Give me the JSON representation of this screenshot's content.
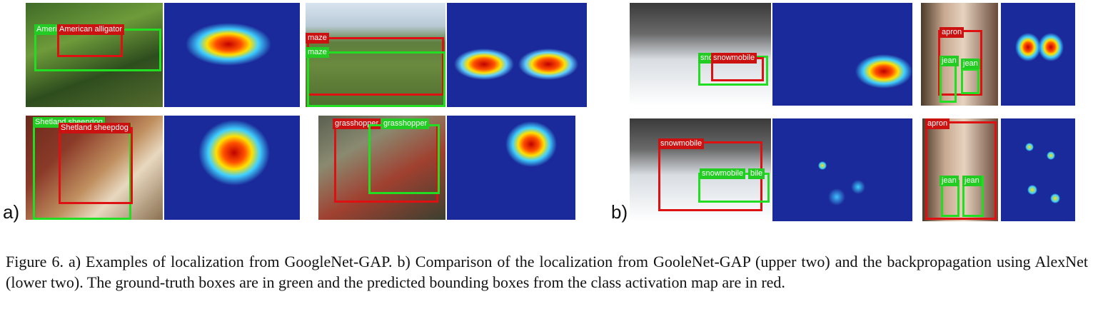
{
  "panel_a_marker": "a)",
  "panel_b_marker": "b)",
  "labels": {
    "a1_gt": "Ameri",
    "a1_pr": "American alligator",
    "a2_pr": "maze",
    "a2_gt": "maze",
    "a3_gt": "Shetland sheepdog",
    "a3_pr": "Shetland sheepdog",
    "a4_pr": "grasshopper",
    "a4_gt": "grasshopper",
    "b1_gt": "sno",
    "b1_pr": "snowmobile",
    "b2_pr": "apron",
    "b2_gt1": "jean",
    "b2_gt2": "jean",
    "b3_pr": "snowmobile",
    "b3_gt": "snowmobile",
    "b3_gt2": "bile",
    "b4_pr": "apron",
    "b4_gt1": "jean",
    "b4_gt2": "jean"
  },
  "caption": "Figure 6. a) Examples of localization from GoogleNet-GAP. b) Comparison of the localization from GooleNet-GAP (upper two) and the backpropagation using AlexNet (lower two). The ground-truth boxes are in green and the predicted bounding boxes from the class activation map are in red.",
  "colors": {
    "ground_truth": "#22dd22",
    "predicted": "#dd1111",
    "heatmap_base": "#1a2a9a"
  }
}
